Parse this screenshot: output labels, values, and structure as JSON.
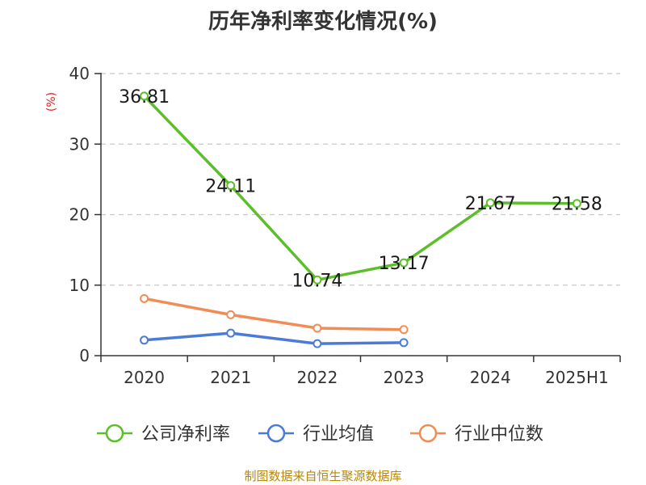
{
  "title": "历年净利率变化情况(%)",
  "footer": "制图数据来自恒生聚源数据库",
  "chart_data": {
    "type": "line",
    "title": "历年净利率变化情况(%)",
    "ylabel": "(%)",
    "xlabel": "",
    "categories": [
      "2020",
      "2021",
      "2022",
      "2023",
      "2024",
      "2025H1"
    ],
    "ylim": [
      0,
      40
    ],
    "yticks": [
      0,
      10,
      20,
      30,
      40
    ],
    "grid": true,
    "legend_position": "bottom",
    "series": [
      {
        "name": "公司净利率",
        "color": "#5cbf2a",
        "values": [
          36.81,
          24.11,
          10.74,
          13.17,
          21.67,
          21.58
        ],
        "labels": [
          "36.81",
          "24.11",
          "10.74",
          "13.17",
          "21.67",
          "21.58"
        ],
        "show_labels": true
      },
      {
        "name": "行业均值",
        "color": "#4a7bd8",
        "values": [
          2.2,
          3.2,
          1.7,
          1.85,
          null,
          null
        ],
        "show_labels": false
      },
      {
        "name": "行业中位数",
        "color": "#f28c56",
        "values": [
          8.1,
          5.8,
          3.9,
          3.7,
          null,
          null
        ],
        "show_labels": false
      }
    ]
  }
}
